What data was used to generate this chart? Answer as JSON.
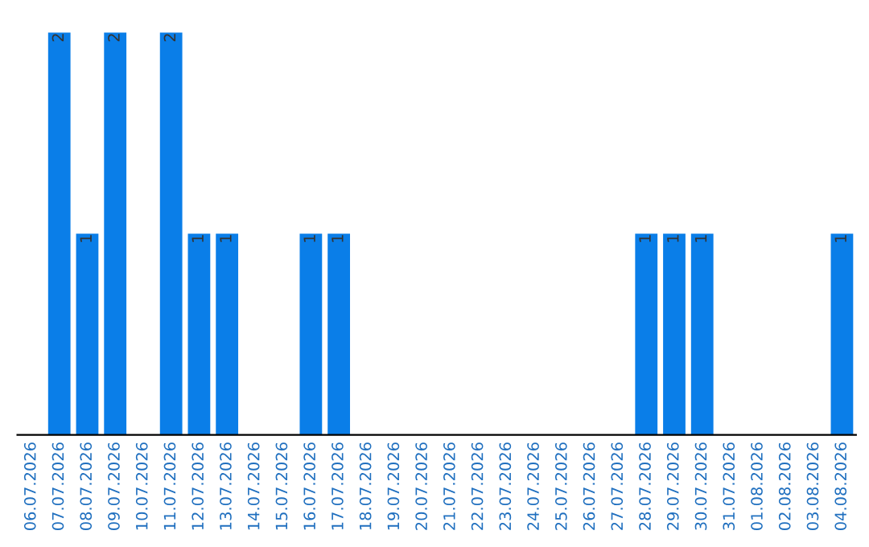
{
  "chart_data": {
    "type": "bar",
    "relative": false,
    "categories": [
      "06.07.2026",
      "07.07.2026",
      "08.07.2026",
      "09.07.2026",
      "10.07.2026",
      "11.07.2026",
      "12.07.2026",
      "13.07.2026",
      "14.07.2026",
      "15.07.2026",
      "16.07.2026",
      "17.07.2026",
      "18.07.2026",
      "19.07.2026",
      "20.07.2026",
      "21.07.2026",
      "22.07.2026",
      "23.07.2026",
      "24.07.2026",
      "25.07.2026",
      "26.07.2026",
      "27.07.2026",
      "28.07.2026",
      "29.07.2026",
      "30.07.2026",
      "31.07.2026",
      "01.08.2026",
      "02.08.2026",
      "03.08.2026",
      "04.08.2026"
    ],
    "values": [
      0,
      2,
      1,
      2,
      0,
      2,
      1,
      1,
      0,
      0,
      1,
      1,
      0,
      0,
      0,
      0,
      0,
      0,
      0,
      0,
      0,
      0,
      1,
      1,
      1,
      0,
      0,
      0,
      0,
      1
    ],
    "value_labels": [
      null,
      "2",
      "1",
      "2",
      null,
      "2",
      "1",
      "1",
      null,
      null,
      "1",
      "1",
      null,
      null,
      null,
      null,
      null,
      null,
      null,
      null,
      null,
      null,
      "1",
      "1",
      "1",
      null,
      null,
      null,
      null,
      "1"
    ],
    "color": "#0a7ee8",
    "grid": false,
    "legend": false,
    "tick_labels": "x"
  }
}
